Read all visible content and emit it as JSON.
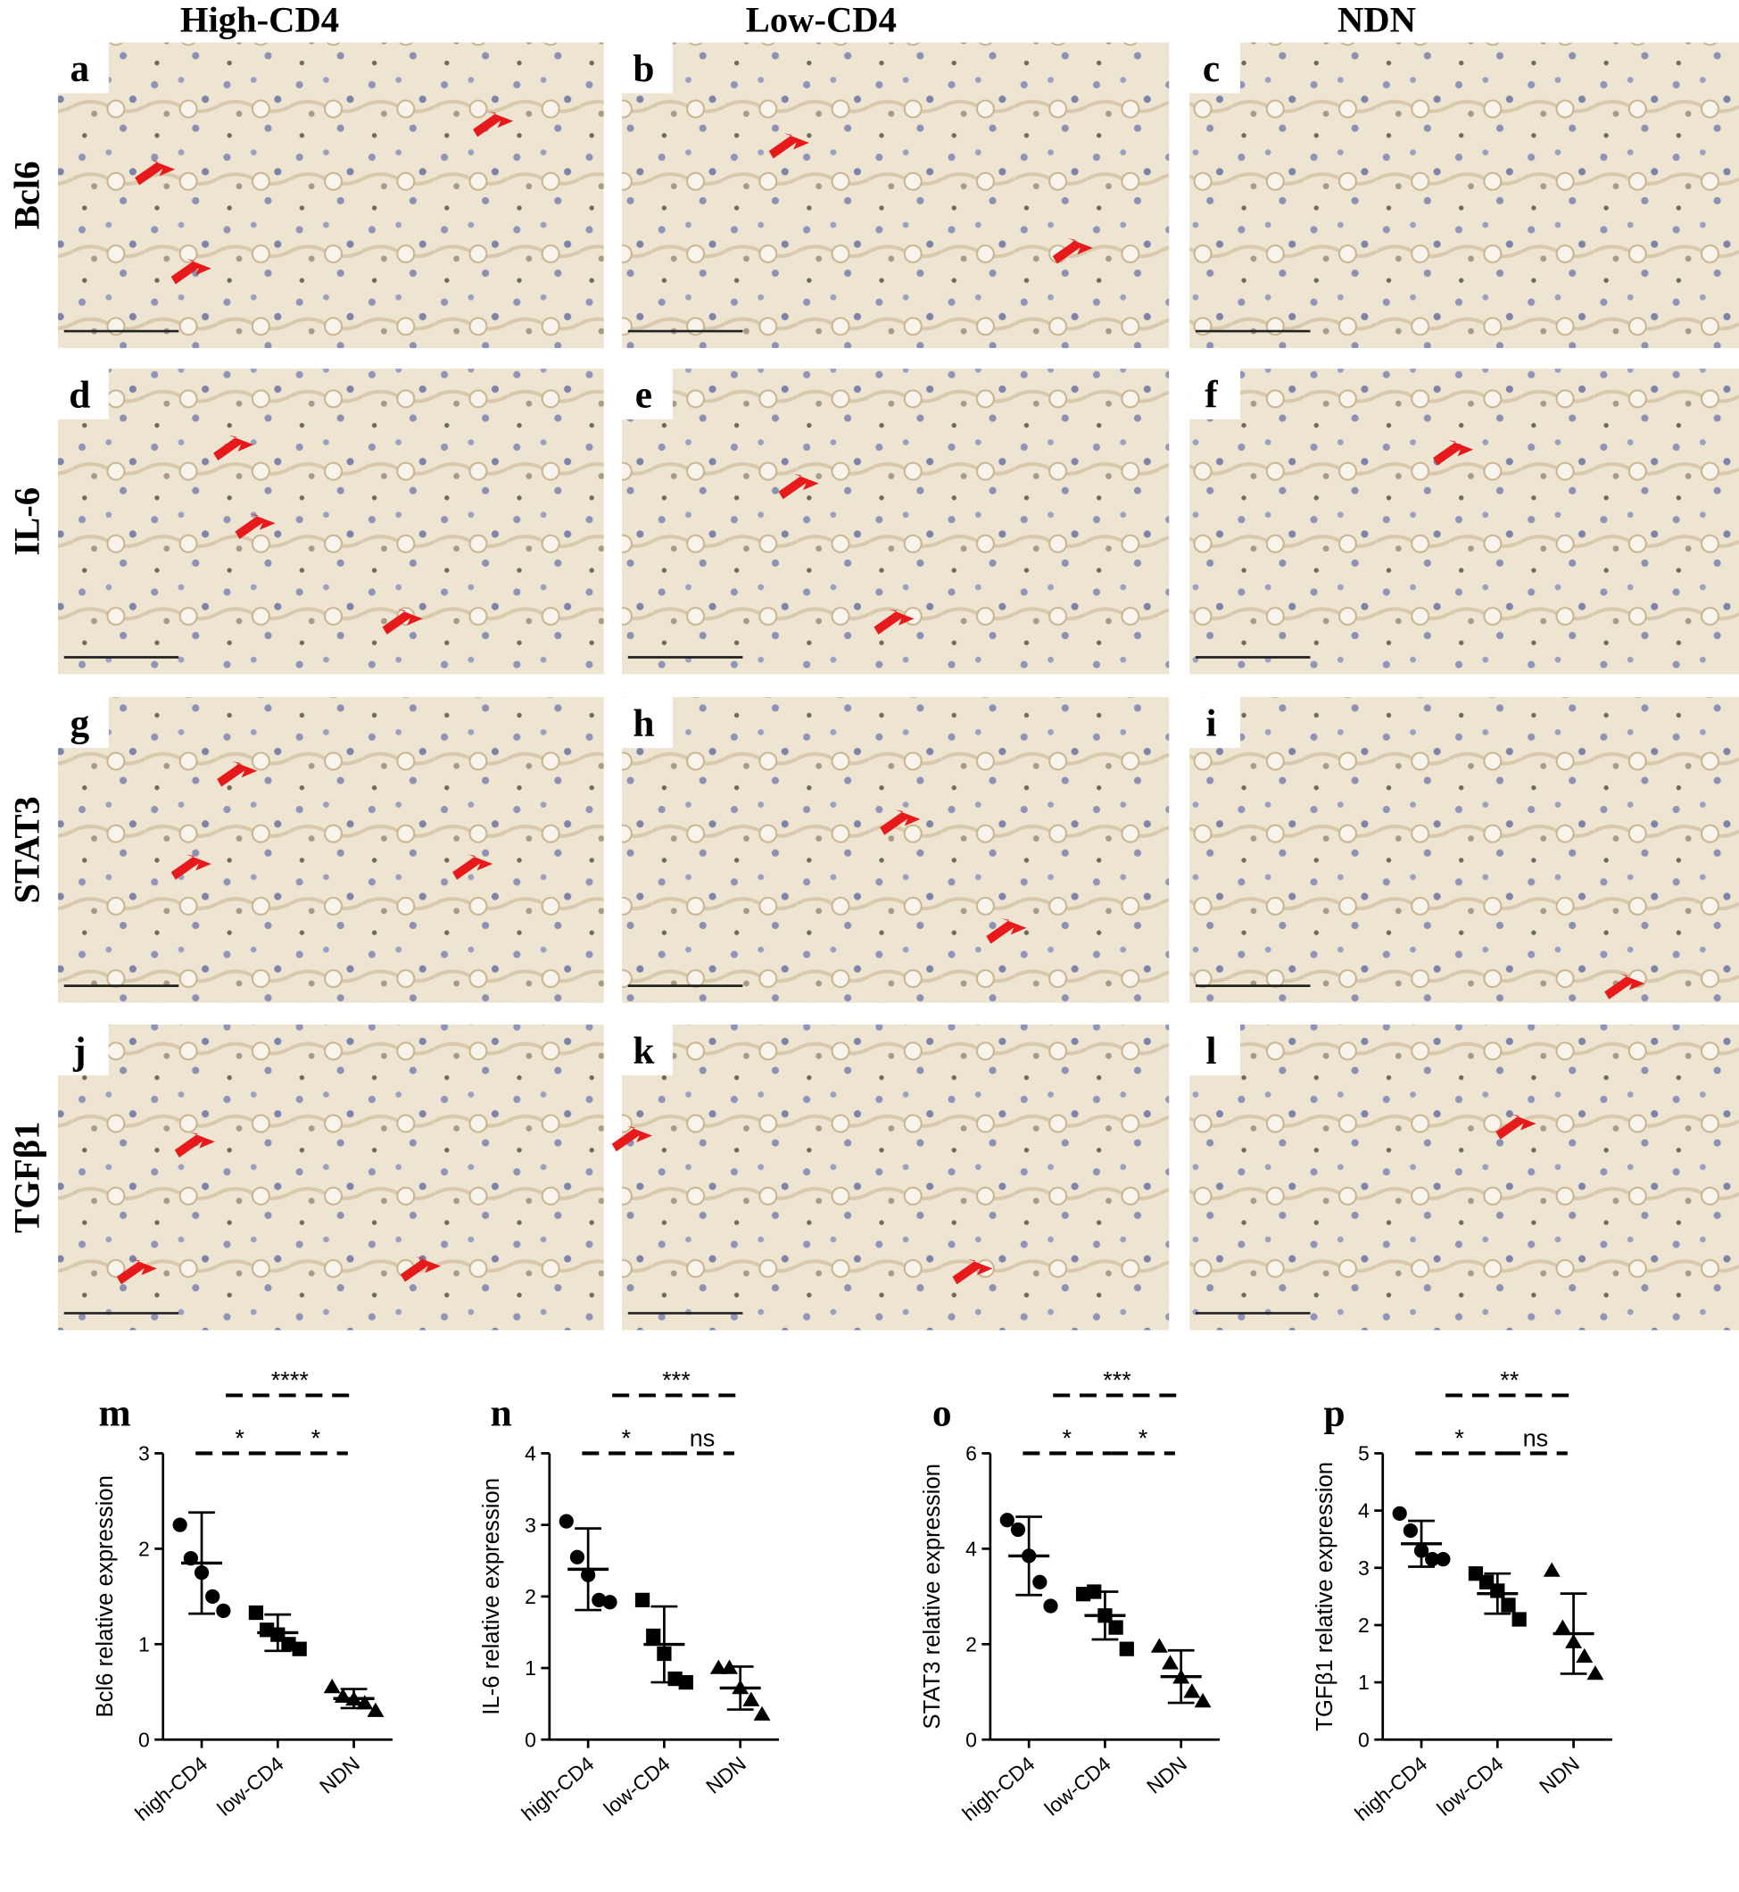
{
  "columns": [
    "High-CD4",
    "Low-CD4",
    "NDN"
  ],
  "rows": [
    "Bcl6",
    "IL-6",
    "STAT3",
    "TGFβ1"
  ],
  "panels": [
    "a",
    "b",
    "c",
    "d",
    "e",
    "f",
    "g",
    "h",
    "i",
    "j",
    "k",
    "l"
  ],
  "chart_data": [
    {
      "type": "scatter",
      "label": "m",
      "ylabel": "Bcl6 relative expression",
      "categories": [
        "high-CD4",
        "low-CD4",
        "NDN"
      ],
      "markers": [
        "circle",
        "square",
        "triangle"
      ],
      "color": "#000000",
      "values": [
        [
          2.25,
          1.9,
          1.75,
          1.5,
          1.35
        ],
        [
          1.33,
          1.15,
          1.1,
          1.0,
          0.95
        ],
        [
          0.55,
          0.45,
          0.42,
          0.38,
          0.3
        ]
      ],
      "means": [
        1.85,
        1.12,
        0.43
      ],
      "sds": [
        0.53,
        0.19,
        0.1
      ],
      "ylim": [
        0,
        3
      ],
      "yticks": [
        0,
        1,
        2,
        3
      ],
      "comparisons": [
        {
          "label": "****",
          "between": [
            "high-CD4",
            "NDN"
          ]
        },
        {
          "label": "*",
          "between": [
            "high-CD4",
            "low-CD4"
          ]
        },
        {
          "label": "*",
          "between": [
            "low-CD4",
            "NDN"
          ]
        }
      ]
    },
    {
      "type": "scatter",
      "label": "n",
      "ylabel": "IL-6 relative expression",
      "categories": [
        "high-CD4",
        "low-CD4",
        "NDN"
      ],
      "markers": [
        "circle",
        "square",
        "triangle"
      ],
      "color": "#000000",
      "values": [
        [
          3.05,
          2.55,
          2.3,
          1.95,
          1.92
        ],
        [
          1.95,
          1.45,
          1.2,
          0.85,
          0.8
        ],
        [
          1.0,
          1.0,
          0.72,
          0.55,
          0.35
        ]
      ],
      "means": [
        2.38,
        1.33,
        0.72
      ],
      "sds": [
        0.57,
        0.53,
        0.3
      ],
      "ylim": [
        0,
        4
      ],
      "yticks": [
        0,
        1,
        2,
        3,
        4
      ],
      "comparisons": [
        {
          "label": "***",
          "between": [
            "high-CD4",
            "NDN"
          ]
        },
        {
          "label": "*",
          "between": [
            "high-CD4",
            "low-CD4"
          ]
        },
        {
          "label": "ns",
          "between": [
            "low-CD4",
            "NDN"
          ]
        }
      ]
    },
    {
      "type": "scatter",
      "label": "o",
      "ylabel": "STAT3 relative expression",
      "categories": [
        "high-CD4",
        "low-CD4",
        "NDN"
      ],
      "markers": [
        "circle",
        "square",
        "triangle"
      ],
      "color": "#000000",
      "values": [
        [
          4.6,
          4.4,
          3.85,
          3.3,
          2.8
        ],
        [
          3.05,
          3.1,
          2.6,
          2.35,
          1.9
        ],
        [
          1.95,
          1.6,
          1.3,
          1.0,
          0.8
        ]
      ],
      "means": [
        3.85,
        2.6,
        1.32
      ],
      "sds": [
        0.82,
        0.5,
        0.55
      ],
      "ylim": [
        0,
        6
      ],
      "yticks": [
        0,
        2,
        4,
        6
      ],
      "comparisons": [
        {
          "label": "***",
          "between": [
            "high-CD4",
            "NDN"
          ]
        },
        {
          "label": "*",
          "between": [
            "high-CD4",
            "low-CD4"
          ]
        },
        {
          "label": "*",
          "between": [
            "low-CD4",
            "NDN"
          ]
        }
      ]
    },
    {
      "type": "scatter",
      "label": "p",
      "ylabel": "TGFβ1 relative expression",
      "categories": [
        "high-CD4",
        "low-CD4",
        "NDN"
      ],
      "markers": [
        "circle",
        "square",
        "triangle"
      ],
      "color": "#000000",
      "values": [
        [
          3.95,
          3.65,
          3.3,
          3.15,
          3.15
        ],
        [
          2.9,
          2.75,
          2.6,
          2.35,
          2.1
        ],
        [
          2.95,
          1.95,
          1.7,
          1.45,
          1.15
        ]
      ],
      "means": [
        3.42,
        2.55,
        1.85
      ],
      "sds": [
        0.4,
        0.35,
        0.7
      ],
      "ylim": [
        0,
        5
      ],
      "yticks": [
        0,
        1,
        2,
        3,
        4,
        5
      ],
      "comparisons": [
        {
          "label": "**",
          "between": [
            "high-CD4",
            "NDN"
          ]
        },
        {
          "label": "*",
          "between": [
            "high-CD4",
            "low-CD4"
          ]
        },
        {
          "label": "ns",
          "between": [
            "low-CD4",
            "NDN"
          ]
        }
      ]
    }
  ]
}
